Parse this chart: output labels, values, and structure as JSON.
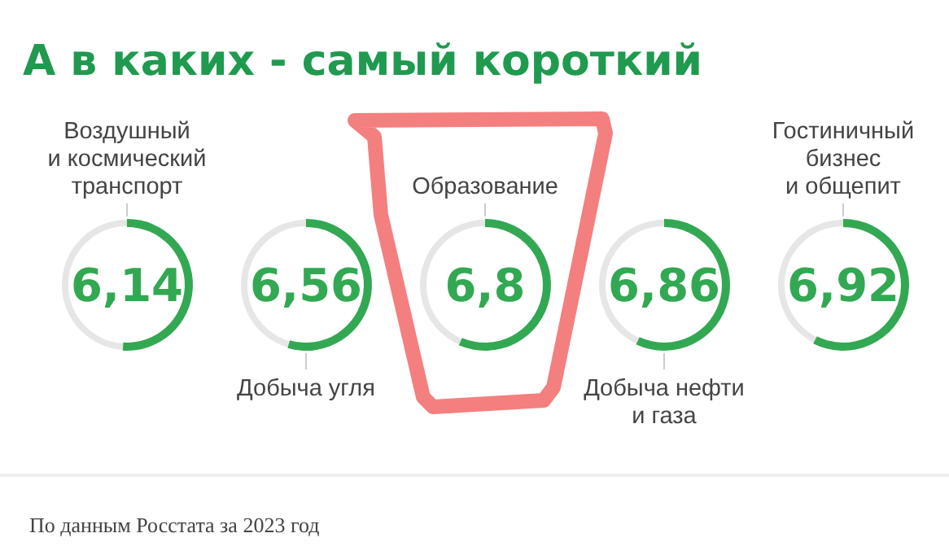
{
  "chart_data": {
    "type": "other",
    "title": "А в каких - самый короткий",
    "categories": [
      "Воздушный\nи космический\nтранспорт",
      "Добыча угля",
      "Образование",
      "Добыча нефти\nи газа",
      "Гостиничный\nбизнес\nи общепит"
    ],
    "values": [
      6.14,
      6.56,
      6.8,
      6.86,
      6.92
    ],
    "value_labels": [
      "6,14",
      "6,56",
      "6,8",
      "6,86",
      "6,92"
    ],
    "color": "#33a852",
    "annotations": [
      "По данным Росстата за 2023 год"
    ]
  }
}
